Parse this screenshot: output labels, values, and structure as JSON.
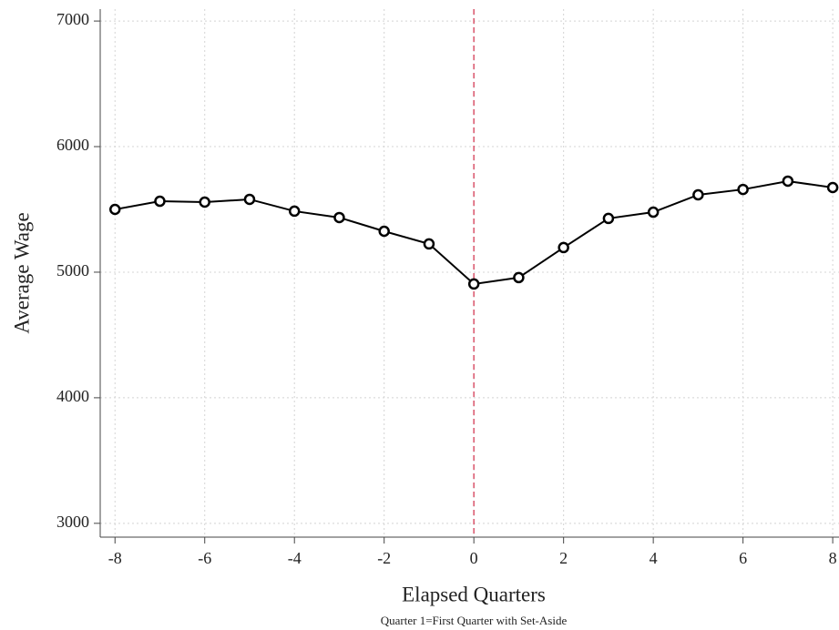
{
  "chart_data": {
    "type": "line",
    "x_label": "Elapsed Quarters",
    "y_label": "Average Wage",
    "note": "Quarter 1=First Quarter with Set-Aside",
    "x": [
      -8,
      -7,
      -6,
      -5,
      -4,
      -3,
      -2,
      -1,
      0,
      1,
      2,
      3,
      4,
      5,
      6,
      7,
      8
    ],
    "series": [
      {
        "name": "Average Wage",
        "color": "#000000",
        "values": [
          5500,
          5565,
          5558,
          5580,
          5486,
          5435,
          5326,
          5225,
          4906,
          4957,
          5196,
          5428,
          5478,
          5616,
          5659,
          5725,
          5674
        ]
      }
    ],
    "xlim": [
      -8.33,
      8.14
    ],
    "ylim": [
      2890,
      7095
    ],
    "xticks": [
      -8,
      -6,
      -4,
      -2,
      0,
      2,
      4,
      6,
      8
    ],
    "yticks": [
      3000,
      4000,
      5000,
      6000,
      7000
    ],
    "grid": true,
    "vline": 0,
    "vline_color": "#d9546b"
  }
}
